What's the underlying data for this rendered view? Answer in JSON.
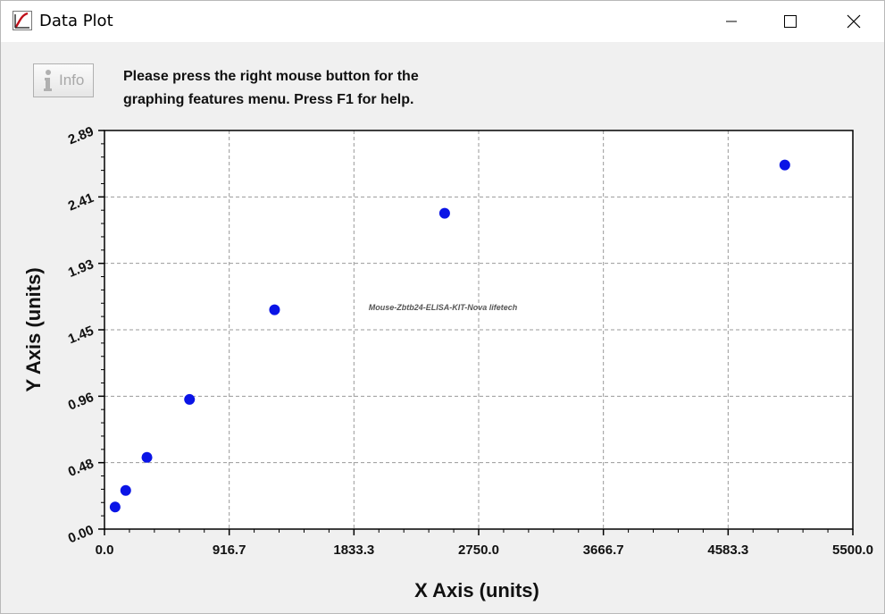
{
  "window": {
    "title": "Data Plot",
    "icon": "app-plot-icon",
    "controls": {
      "minimize": "minimize-icon",
      "maximize": "maximize-icon",
      "close": "close-icon"
    }
  },
  "info_button": {
    "label": "Info",
    "icon": "info-icon"
  },
  "instructions": {
    "line1": "Please press the right mouse button for the",
    "line2": "graphing features menu.  Press F1 for help."
  },
  "colors": {
    "point": "#0a14e6",
    "grid": "#9a9a9a",
    "axis": "#000000",
    "background": "#f0f0f0"
  },
  "chart_data": {
    "type": "scatter",
    "xlabel": "X Axis (units)",
    "ylabel": "Y Axis (units)",
    "xlim": [
      0,
      5500
    ],
    "ylim": [
      0,
      2.89
    ],
    "x_ticks": [
      "0.0",
      "916.7",
      "1833.3",
      "2750.0",
      "3666.7",
      "4583.3",
      "5500.0"
    ],
    "y_ticks": [
      "0.00",
      "0.48",
      "0.96",
      "1.45",
      "1.93",
      "2.41",
      "2.89"
    ],
    "grid": true,
    "watermark": "Mouse-Zbtb24-ELISA-KIT-Nova lifetech",
    "series": [
      {
        "x": [
          78,
          156,
          312,
          625,
          1250,
          2500,
          5000
        ],
        "y": [
          0.16,
          0.28,
          0.52,
          0.94,
          1.59,
          2.29,
          2.64
        ]
      }
    ]
  }
}
